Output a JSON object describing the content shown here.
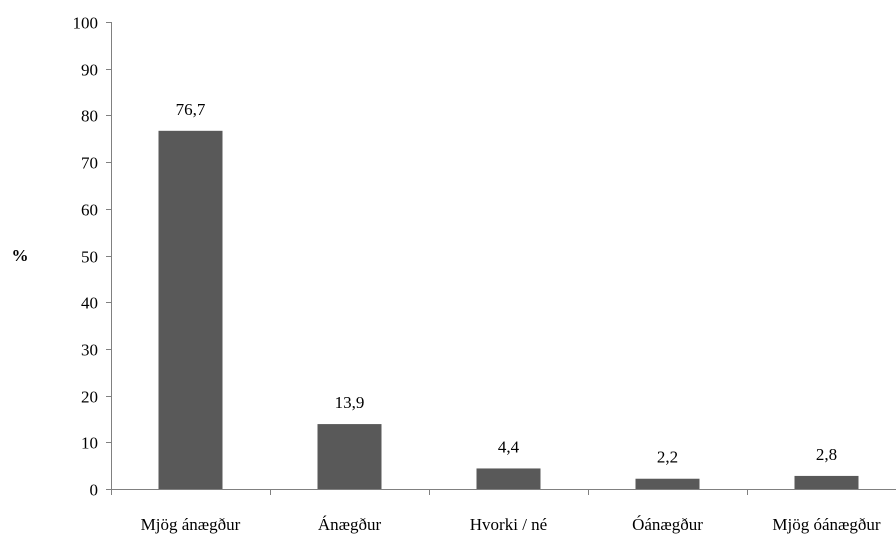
{
  "chart_data": {
    "type": "bar",
    "categories": [
      "Mjög ánægður",
      "Ánægður",
      "Hvorki / né",
      "Óánægður",
      "Mjög óánægður"
    ],
    "values": [
      76.7,
      13.9,
      4.4,
      2.2,
      2.8
    ],
    "value_labels": [
      "76,7",
      "13,9",
      "4,4",
      "2,2",
      "2,8"
    ],
    "ylabel": "%",
    "ylim": [
      0,
      100
    ],
    "yticks": [
      0,
      10,
      20,
      30,
      40,
      50,
      60,
      70,
      80,
      90,
      100
    ],
    "grid": false,
    "bar_color": "#595959"
  }
}
